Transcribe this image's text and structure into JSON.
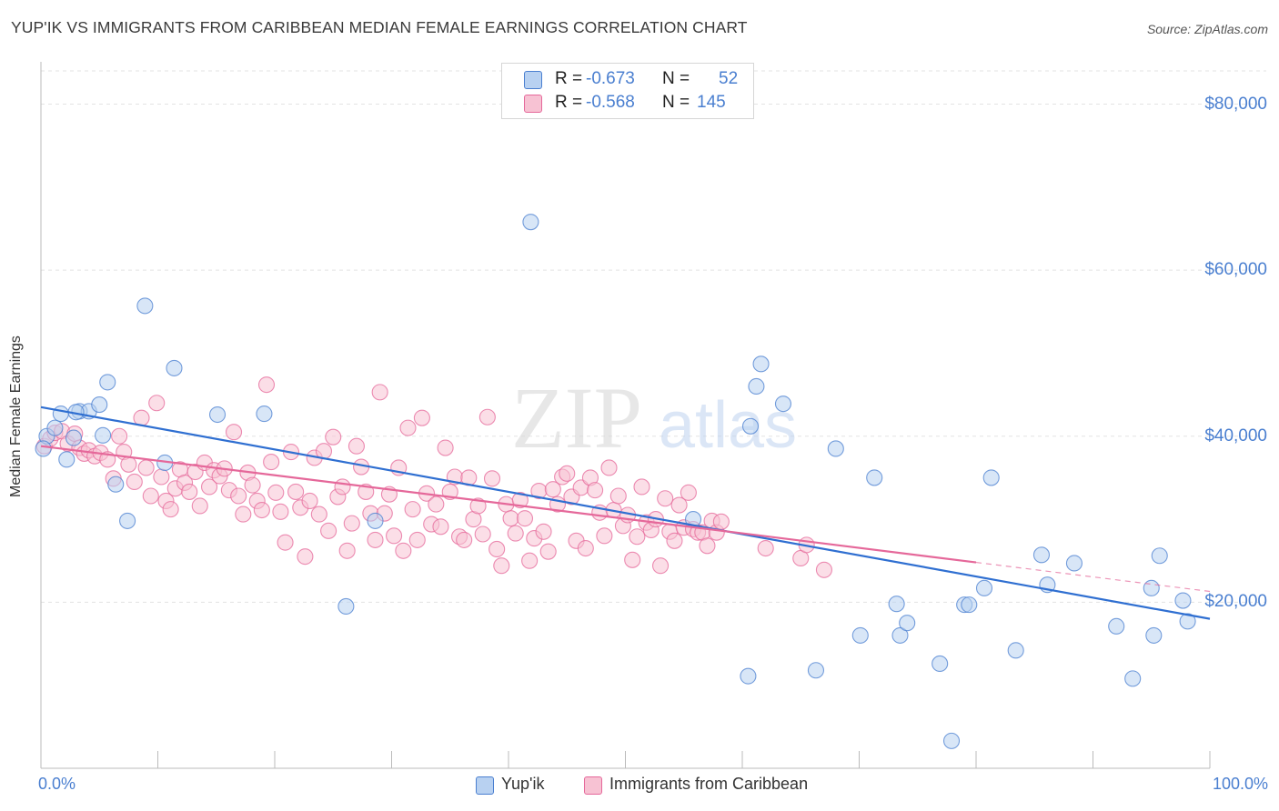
{
  "title": "YUP'IK VS IMMIGRANTS FROM CARIBBEAN MEDIAN FEMALE EARNINGS CORRELATION CHART",
  "source": "Source: ZipAtlas.com",
  "watermark": {
    "zip": "ZIP",
    "atlas": "atlas"
  },
  "colors": {
    "blue": "#4a7fd0",
    "blue_fill": "#b8d1f1",
    "blue_line": "#2f6fd1",
    "pink": "#e5689a",
    "pink_fill": "#f7c2d3",
    "pink_line": "#e5689a",
    "grid": "#e3e3e3"
  },
  "legend": {
    "rows": [
      {
        "r_label": "R =",
        "r_value": "-0.673",
        "n_label": "N =",
        "n_value": "52"
      },
      {
        "r_label": "R =",
        "r_value": "-0.568",
        "n_label": "N =",
        "n_value": "145"
      }
    ]
  },
  "chart_data": {
    "type": "scatter",
    "xlabel": "",
    "ylabel": "Median Female Earnings",
    "xlim": [
      0,
      100
    ],
    "ylim": [
      0,
      84000
    ],
    "x_tick_labels": [
      "0.0%",
      "100.0%"
    ],
    "y_ticks": [
      {
        "value": 20000,
        "label": "$20,000"
      },
      {
        "value": 40000,
        "label": "$40,000"
      },
      {
        "value": 60000,
        "label": "$60,000"
      },
      {
        "value": 80000,
        "label": "$80,000"
      }
    ],
    "series": [
      {
        "name": "Yup'ik",
        "color": "#4a7fd0",
        "trend": {
          "x0": 0,
          "y0": 43500,
          "x1": 100,
          "y1": 18000
        },
        "points": [
          [
            0.5,
            40000
          ],
          [
            1.2,
            41000
          ],
          [
            1.7,
            42700
          ],
          [
            2.2,
            37200
          ],
          [
            2.8,
            39800
          ],
          [
            3.3,
            43000
          ],
          [
            4.1,
            43000
          ],
          [
            5.0,
            43800
          ],
          [
            5.3,
            40100
          ],
          [
            5.7,
            46500
          ],
          [
            6.4,
            34200
          ],
          [
            7.4,
            29800
          ],
          [
            8.9,
            55700
          ],
          [
            10.6,
            36800
          ],
          [
            11.4,
            48200
          ],
          [
            15.1,
            42600
          ],
          [
            19.1,
            42700
          ],
          [
            26.1,
            19500
          ],
          [
            28.6,
            29800
          ],
          [
            41.9,
            65800
          ],
          [
            55.8,
            30000
          ],
          [
            60.5,
            11100
          ],
          [
            60.7,
            41200
          ],
          [
            61.2,
            46000
          ],
          [
            61.6,
            48700
          ],
          [
            63.5,
            43900
          ],
          [
            66.3,
            11800
          ],
          [
            68.0,
            38500
          ],
          [
            70.1,
            16000
          ],
          [
            71.3,
            35000
          ],
          [
            73.2,
            19800
          ],
          [
            73.5,
            16000
          ],
          [
            74.1,
            17500
          ],
          [
            76.9,
            12600
          ],
          [
            79.0,
            19700
          ],
          [
            79.4,
            19700
          ],
          [
            80.7,
            21700
          ],
          [
            81.3,
            35000
          ],
          [
            83.4,
            14200
          ],
          [
            85.6,
            25700
          ],
          [
            86.1,
            22100
          ],
          [
            88.4,
            24700
          ],
          [
            92.0,
            17100
          ],
          [
            93.4,
            10800
          ],
          [
            95.0,
            21700
          ],
          [
            95.2,
            16000
          ],
          [
            95.7,
            25600
          ],
          [
            97.7,
            20200
          ],
          [
            98.1,
            17700
          ],
          [
            77.9,
            3300
          ],
          [
            0.2,
            38500
          ],
          [
            3.0,
            42900
          ]
        ]
      },
      {
        "name": "Immigrants from Caribbean",
        "color": "#e5689a",
        "trend": {
          "x0": 0,
          "y0": 38800,
          "x1": 80,
          "y1": 24800,
          "dash_x1": 100,
          "dash_y1": 21300
        },
        "points": [
          [
            0.3,
            38800
          ],
          [
            0.8,
            39700
          ],
          [
            1.2,
            40400
          ],
          [
            1.8,
            40600
          ],
          [
            2.3,
            39100
          ],
          [
            2.9,
            40300
          ],
          [
            3.3,
            38600
          ],
          [
            3.7,
            37900
          ],
          [
            4.1,
            38300
          ],
          [
            4.6,
            37600
          ],
          [
            5.1,
            38000
          ],
          [
            5.7,
            37200
          ],
          [
            6.2,
            34900
          ],
          [
            6.7,
            40000
          ],
          [
            7.1,
            38100
          ],
          [
            7.5,
            36600
          ],
          [
            8.0,
            34500
          ],
          [
            8.6,
            42200
          ],
          [
            9.0,
            36200
          ],
          [
            9.4,
            32800
          ],
          [
            9.9,
            44000
          ],
          [
            10.3,
            35100
          ],
          [
            10.7,
            32200
          ],
          [
            11.1,
            31200
          ],
          [
            11.5,
            33700
          ],
          [
            11.9,
            36000
          ],
          [
            12.3,
            34400
          ],
          [
            12.7,
            33300
          ],
          [
            13.2,
            35700
          ],
          [
            13.6,
            31600
          ],
          [
            14.0,
            36800
          ],
          [
            14.4,
            33900
          ],
          [
            14.8,
            35900
          ],
          [
            15.3,
            35200
          ],
          [
            15.7,
            36100
          ],
          [
            16.1,
            33500
          ],
          [
            16.5,
            40500
          ],
          [
            16.9,
            32800
          ],
          [
            17.3,
            30600
          ],
          [
            17.7,
            35600
          ],
          [
            18.1,
            34100
          ],
          [
            18.5,
            32200
          ],
          [
            18.9,
            31100
          ],
          [
            19.3,
            46200
          ],
          [
            19.7,
            36900
          ],
          [
            20.1,
            33200
          ],
          [
            20.5,
            30900
          ],
          [
            20.9,
            27200
          ],
          [
            21.4,
            38100
          ],
          [
            21.8,
            33300
          ],
          [
            22.2,
            31400
          ],
          [
            22.6,
            25500
          ],
          [
            23.0,
            32200
          ],
          [
            23.4,
            37400
          ],
          [
            23.8,
            30600
          ],
          [
            24.2,
            38200
          ],
          [
            24.6,
            28600
          ],
          [
            25.0,
            39900
          ],
          [
            25.4,
            32700
          ],
          [
            25.8,
            33900
          ],
          [
            26.2,
            26200
          ],
          [
            26.6,
            29500
          ],
          [
            27.0,
            38800
          ],
          [
            27.4,
            36300
          ],
          [
            27.8,
            33300
          ],
          [
            28.2,
            30700
          ],
          [
            28.6,
            27500
          ],
          [
            29.0,
            45300
          ],
          [
            29.4,
            30700
          ],
          [
            29.8,
            33000
          ],
          [
            30.2,
            28000
          ],
          [
            30.6,
            36200
          ],
          [
            31.0,
            26200
          ],
          [
            31.4,
            41000
          ],
          [
            31.8,
            31200
          ],
          [
            32.2,
            27500
          ],
          [
            32.6,
            42200
          ],
          [
            33.0,
            33100
          ],
          [
            33.4,
            29400
          ],
          [
            33.8,
            31800
          ],
          [
            34.2,
            29100
          ],
          [
            34.6,
            38600
          ],
          [
            35.0,
            33300
          ],
          [
            35.4,
            35100
          ],
          [
            35.8,
            27900
          ],
          [
            36.2,
            27500
          ],
          [
            36.6,
            35000
          ],
          [
            37.0,
            30000
          ],
          [
            37.4,
            31600
          ],
          [
            37.8,
            28200
          ],
          [
            38.2,
            42300
          ],
          [
            38.6,
            34900
          ],
          [
            39.0,
            26400
          ],
          [
            39.4,
            24400
          ],
          [
            39.8,
            31800
          ],
          [
            40.2,
            30100
          ],
          [
            40.6,
            28300
          ],
          [
            41.0,
            32300
          ],
          [
            41.4,
            30100
          ],
          [
            41.8,
            25000
          ],
          [
            42.2,
            27700
          ],
          [
            42.6,
            33400
          ],
          [
            43.0,
            28500
          ],
          [
            43.4,
            26100
          ],
          [
            43.8,
            33600
          ],
          [
            44.2,
            31800
          ],
          [
            44.6,
            35100
          ],
          [
            45.0,
            35500
          ],
          [
            45.4,
            32700
          ],
          [
            45.8,
            27400
          ],
          [
            46.2,
            33800
          ],
          [
            46.6,
            26500
          ],
          [
            47.0,
            35000
          ],
          [
            47.4,
            33500
          ],
          [
            47.8,
            30800
          ],
          [
            48.2,
            28000
          ],
          [
            48.6,
            36200
          ],
          [
            49.0,
            31100
          ],
          [
            49.4,
            32800
          ],
          [
            49.8,
            29200
          ],
          [
            50.2,
            30500
          ],
          [
            50.6,
            25100
          ],
          [
            51.0,
            27900
          ],
          [
            51.4,
            33900
          ],
          [
            51.8,
            29600
          ],
          [
            52.2,
            28700
          ],
          [
            52.6,
            30000
          ],
          [
            53.0,
            24400
          ],
          [
            53.4,
            32500
          ],
          [
            53.8,
            28500
          ],
          [
            54.2,
            27400
          ],
          [
            54.6,
            31700
          ],
          [
            55.0,
            29000
          ],
          [
            55.4,
            33200
          ],
          [
            55.8,
            28800
          ],
          [
            56.2,
            28400
          ],
          [
            56.6,
            28400
          ],
          [
            57.0,
            26800
          ],
          [
            57.4,
            29800
          ],
          [
            57.8,
            28400
          ],
          [
            58.2,
            29700
          ],
          [
            62.0,
            26500
          ],
          [
            65.0,
            25300
          ],
          [
            65.5,
            26900
          ],
          [
            67.0,
            23900
          ]
        ]
      }
    ]
  },
  "bottom_legend": [
    {
      "label": "Yup'ik"
    },
    {
      "label": "Immigrants from Caribbean"
    }
  ]
}
